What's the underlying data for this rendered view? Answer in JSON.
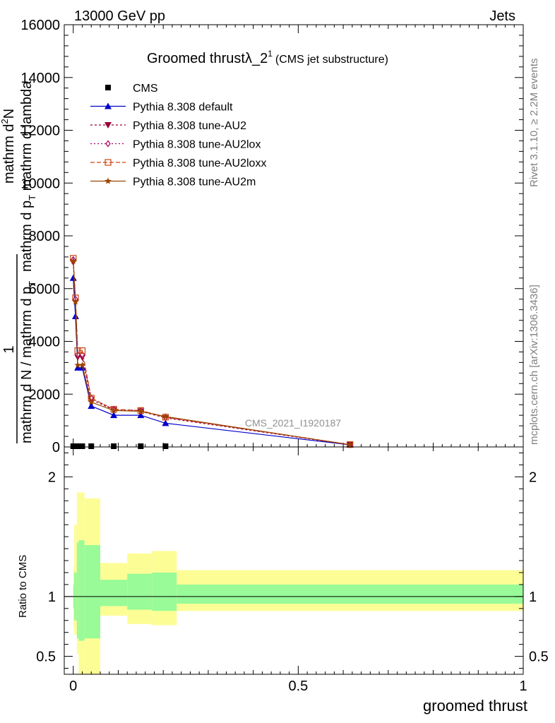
{
  "header": {
    "left": "13000 GeV pp",
    "right": "Jets"
  },
  "title": {
    "main": "Groomed thrustλ_2",
    "sup": "1",
    "sub": "(CMS jet substructure)"
  },
  "side_labels": {
    "rivet": "Rivet 3.1.10, ≥ 2.2M events",
    "mcplots": "mcplots.cern.ch [arXiv:1306.3436]"
  },
  "watermark": "CMS_2021_I1920187",
  "ylabel_main": {
    "numerator_one": "1",
    "denominator_one": "mathrm d N / mathrm d p",
    "denominator_one_sub": "T",
    "numerator_two": "mathrm d",
    "numerator_two_sup": "2",
    "numerator_two_tail": "N",
    "denominator_two": "mathrm d p",
    "denominator_two_sub": "T",
    "denominator_two_tail": " mathrm d lambda"
  },
  "ylabel_ratio": "Ratio to CMS",
  "xlabel": "groomed thrust",
  "colors": {
    "data": "#000000",
    "default": "#0000cc",
    "au2": "#990033",
    "au2lox": "#aa0066",
    "au2loxx": "#cc4411",
    "au2m": "#994400",
    "band_inner": "#98fb98",
    "band_outer": "#fdfd96"
  },
  "chart_data": [
    {
      "type": "line",
      "panel": "main",
      "xlim": [
        -0.02,
        1.0
      ],
      "ylim": [
        0,
        16000
      ],
      "x_ticks": [
        0,
        0.5,
        1
      ],
      "y_ticks": [
        0,
        2000,
        4000,
        6000,
        8000,
        10000,
        12000,
        14000,
        16000
      ],
      "y_tick_labels": [
        "0",
        "2000",
        "4000",
        "6000",
        "8000",
        "10000",
        "12000",
        "14000",
        "16000"
      ],
      "legend_position": "top-left",
      "series": [
        {
          "name": "CMS",
          "key": "data",
          "marker": "square",
          "x": [
            0.0,
            0.005,
            0.01,
            0.02,
            0.04,
            0.09,
            0.15,
            0.205
          ],
          "y": [
            0,
            0,
            0,
            0,
            0,
            0,
            0,
            0
          ]
        },
        {
          "name": "Pythia 8.308 default",
          "key": "default",
          "marker": "triangle-up",
          "dash": "",
          "x": [
            0.0,
            0.005,
            0.01,
            0.02,
            0.04,
            0.09,
            0.15,
            0.205,
            0.615
          ],
          "y": [
            6400,
            4950,
            3000,
            3000,
            1550,
            1200,
            1200,
            900,
            80
          ]
        },
        {
          "name": "Pythia 8.308 tune-AU2",
          "key": "au2",
          "marker": "triangle-down",
          "dash": "3,3",
          "x": [
            0.0,
            0.005,
            0.01,
            0.02,
            0.04,
            0.09,
            0.15,
            0.205,
            0.615
          ],
          "y": [
            7000,
            5500,
            3400,
            3400,
            1800,
            1400,
            1350,
            1100,
            80
          ]
        },
        {
          "name": "Pythia 8.308 tune-AU2lox",
          "key": "au2lox",
          "marker": "diamond",
          "dash": "2,3",
          "x": [
            0.0,
            0.005,
            0.01,
            0.02,
            0.04,
            0.09,
            0.15,
            0.205,
            0.615
          ],
          "y": [
            7100,
            5600,
            3500,
            3500,
            1850,
            1420,
            1380,
            1120,
            85
          ]
        },
        {
          "name": "Pythia 8.308 tune-AU2loxx",
          "key": "au2loxx",
          "marker": "square-open",
          "dash": "6,3",
          "x": [
            0.0,
            0.005,
            0.01,
            0.02,
            0.04,
            0.09,
            0.15,
            0.205,
            0.615
          ],
          "y": [
            7150,
            5650,
            3650,
            3650,
            1850,
            1430,
            1380,
            1130,
            90
          ]
        },
        {
          "name": "Pythia 8.308 tune-AU2m",
          "key": "au2m",
          "marker": "star",
          "dash": "",
          "x": [
            0.0,
            0.005,
            0.01,
            0.02,
            0.04,
            0.09,
            0.15,
            0.205,
            0.615
          ],
          "y": [
            7050,
            5500,
            3100,
            3100,
            1700,
            1380,
            1350,
            1150,
            85
          ]
        }
      ]
    },
    {
      "type": "area",
      "panel": "ratio",
      "xlim": [
        -0.02,
        1.0
      ],
      "ylim": [
        0.35,
        2.25
      ],
      "y_ticks": [
        0.5,
        1,
        2
      ],
      "y_tick_labels": [
        "0.5",
        "1",
        "2"
      ],
      "x_tick_labels": [
        "0",
        "0.5",
        "1"
      ],
      "reference_line": 1,
      "bands": {
        "x_edges": [
          0.0,
          0.002,
          0.008,
          0.012,
          0.025,
          0.06,
          0.12,
          0.175,
          0.23,
          1.0
        ],
        "outer_low": [
          0.75,
          0.68,
          0.52,
          0.3,
          0.3,
          0.84,
          0.77,
          0.76,
          0.88
        ],
        "outer_high": [
          1.25,
          1.6,
          1.87,
          1.87,
          1.82,
          1.28,
          1.36,
          1.38,
          1.22
        ],
        "inner_low": [
          0.9,
          0.8,
          0.65,
          0.63,
          0.65,
          0.92,
          0.89,
          0.88,
          0.94
        ],
        "inner_high": [
          1.1,
          1.2,
          1.45,
          1.47,
          1.43,
          1.14,
          1.19,
          1.2,
          1.1
        ]
      }
    }
  ]
}
